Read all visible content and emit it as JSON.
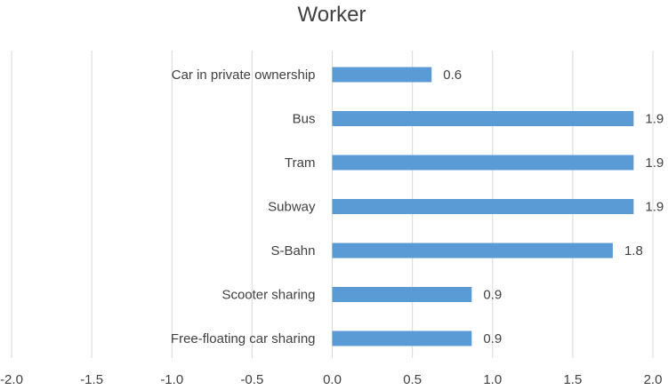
{
  "chart_data": {
    "type": "bar",
    "orientation": "horizontal",
    "title": "Worker",
    "xlabel": "",
    "ylabel": "",
    "xlim": [
      -2.0,
      2.0
    ],
    "x_ticks": [
      "-2.0",
      "-1.5",
      "-1.0",
      "-0.5",
      "0.0",
      "0.5",
      "1.0",
      "1.5",
      "2.0"
    ],
    "grid": "vertical",
    "legend": "none",
    "bar_color": "#5b9bd5",
    "categories": [
      "Car in private ownership",
      "Bus",
      "Tram",
      "Subway",
      "S-Bahn",
      "Scooter sharing",
      "Free-floating car sharing"
    ],
    "values": [
      0.62,
      1.88,
      1.88,
      1.88,
      1.75,
      0.87,
      0.87
    ],
    "data_labels": [
      "0.6",
      "1.9",
      "1.9",
      "1.9",
      "1.8",
      "0.9",
      "0.9"
    ]
  }
}
